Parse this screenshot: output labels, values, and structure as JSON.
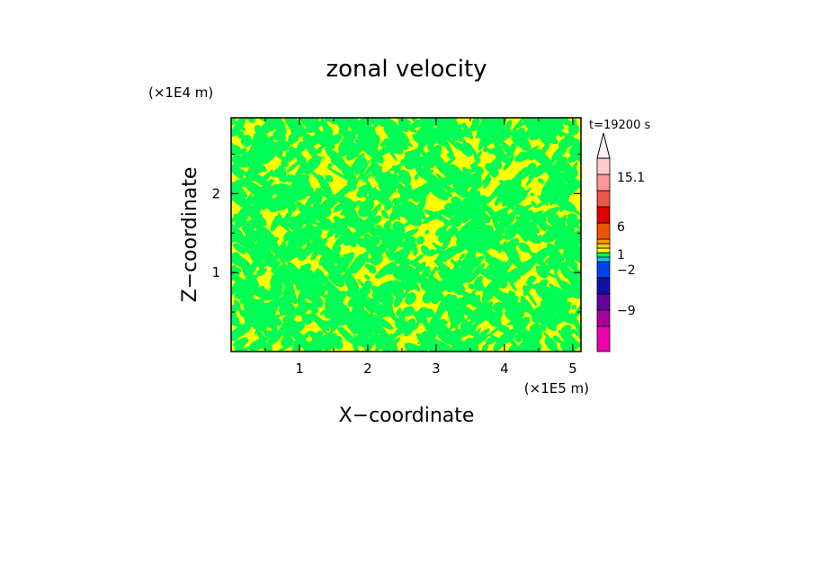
{
  "chart_data": {
    "type": "heatmap",
    "title": "zonal velocity",
    "xlabel": "X−coordinate",
    "ylabel": "Z−coordinate",
    "x_unit": "(×1E5 m)",
    "y_unit": "(×1E4 m)",
    "time_label": "t=19200 s",
    "xlim": [
      0,
      5.12
    ],
    "ylim": [
      0,
      2.96
    ],
    "x_ticks": [
      1,
      2,
      3,
      4,
      5
    ],
    "y_ticks": [
      1,
      2
    ],
    "x_tick_labels": [
      "1",
      "2",
      "3",
      "4",
      "5"
    ],
    "y_tick_labels": [
      "1",
      "2"
    ],
    "field_colors": {
      "positive_weak": "#ffff00",
      "negative_weak": "#00ff55"
    },
    "colorbar": {
      "levels_bottom_to_top": [
        {
          "color": "#ee00aa"
        },
        {
          "color": "#aa0099"
        },
        {
          "color": "#660099"
        },
        {
          "color": "#1111aa"
        },
        {
          "color": "#0044ee"
        },
        {
          "color": "#00ccff"
        },
        {
          "color": "#00ff55"
        },
        {
          "color": "#ffff00"
        },
        {
          "color": "#ffcc00"
        },
        {
          "color": "#ff9900"
        },
        {
          "color": "#ee5500"
        },
        {
          "color": "#dd0000"
        },
        {
          "color": "#ee5544"
        },
        {
          "color": "#ff9999"
        },
        {
          "color": "#ffcccc"
        }
      ],
      "labels": [
        "15.1",
        "6",
        "1",
        "−2",
        "−9"
      ],
      "has_max_arrow": true,
      "arrow_color": "#ffeeee"
    }
  }
}
